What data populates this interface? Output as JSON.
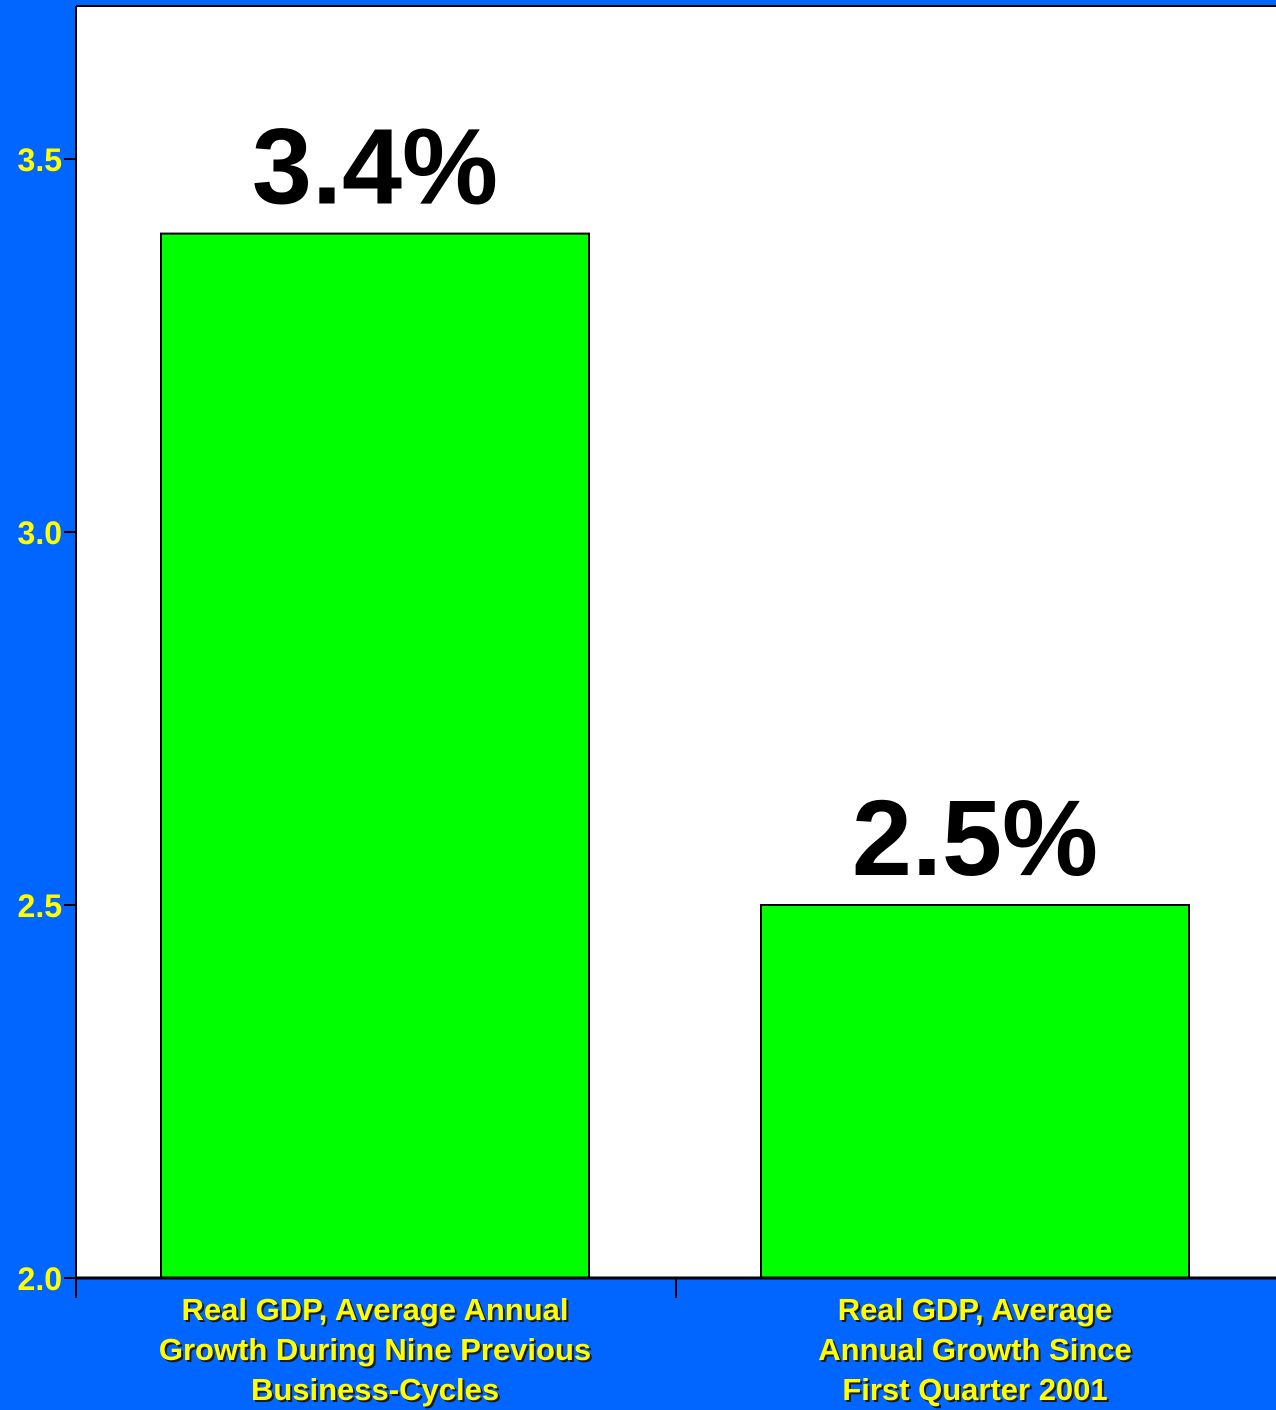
{
  "colors": {
    "background": "#0066ff",
    "plot_area": "#ffffff",
    "bar_fill": "#00ff00",
    "bar_stroke": "#000000",
    "axis_text": "#ffff00",
    "data_label_text": "#000000"
  },
  "chart_data": {
    "type": "bar",
    "title": "",
    "xlabel": "",
    "ylabel": "",
    "categories": [
      "Real GDP, Average Annual\nGrowth During Nine Previous\nBusiness-Cycles",
      "Real GDP, Average\nAnnual Growth Since\nFirst Quarter 2001"
    ],
    "values": [
      3.4,
      2.5
    ],
    "data_labels": [
      "3.4%",
      "2.5%"
    ],
    "ylim": [
      2.0,
      3.7
    ],
    "yticks": [
      2.0,
      2.5,
      3.0,
      3.5
    ],
    "ytick_labels": [
      "2.0",
      "2.5",
      "3.0",
      "3.5"
    ],
    "grid": false,
    "legend": "none"
  }
}
